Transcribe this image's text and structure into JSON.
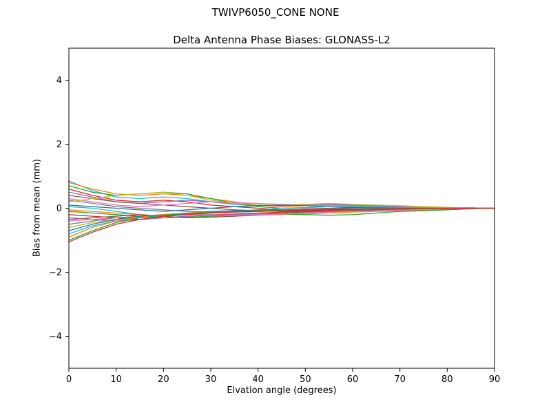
{
  "chart_data": {
    "type": "line",
    "suptitle": "TWIVP6050_CONE  NONE",
    "title": "Delta Antenna Phase Biases: GLONASS-L2",
    "xlabel": "Elvation angle (degrees)",
    "ylabel": "Bias from mean (mm)",
    "xlim": [
      0,
      90
    ],
    "ylim": [
      -5,
      5
    ],
    "xticks": [
      0,
      10,
      20,
      30,
      40,
      50,
      60,
      70,
      80,
      90
    ],
    "yticks": [
      -4,
      -2,
      0,
      2,
      4
    ],
    "grid": false,
    "legend": "none",
    "x": [
      0,
      5,
      10,
      15,
      20,
      25,
      30,
      35,
      40,
      45,
      50,
      55,
      60,
      65,
      70,
      75,
      80,
      85,
      90
    ],
    "series": [
      {
        "color": "#17becf",
        "values": [
          0.85,
          0.55,
          0.35,
          0.3,
          0.35,
          0.3,
          0.2,
          0.12,
          0.08,
          0.1,
          0.12,
          0.1,
          0.08,
          0.06,
          0.05,
          0.03,
          0.02,
          0.01,
          0
        ]
      },
      {
        "color": "#ff7f0e",
        "values": [
          0.8,
          0.6,
          0.45,
          0.4,
          0.45,
          0.4,
          0.3,
          0.2,
          0.1,
          0.05,
          0.08,
          0.1,
          0.08,
          0.05,
          0.04,
          0.03,
          0.02,
          0.01,
          0
        ]
      },
      {
        "color": "#2ca02c",
        "values": [
          0.7,
          0.5,
          0.4,
          0.45,
          0.5,
          0.45,
          0.3,
          0.15,
          0.05,
          0,
          0.02,
          0.05,
          0.06,
          0.05,
          0.04,
          0.02,
          0.01,
          0.01,
          0
        ]
      },
      {
        "color": "#d62728",
        "values": [
          0.6,
          0.4,
          0.25,
          0.2,
          0.25,
          0.2,
          0.1,
          0.05,
          0,
          -0.05,
          -0.02,
          0,
          0.02,
          0.03,
          0.02,
          0.01,
          0.01,
          0,
          0
        ]
      },
      {
        "color": "#9467bd",
        "values": [
          0.5,
          0.35,
          0.2,
          0.15,
          0.2,
          0.25,
          0.2,
          0.15,
          0.1,
          0.08,
          0.1,
          0.12,
          0.1,
          0.08,
          0.06,
          0.04,
          0.02,
          0.01,
          0
        ]
      },
      {
        "color": "#8c564b",
        "values": [
          0.4,
          0.3,
          0.2,
          0.15,
          0.1,
          0.05,
          0,
          -0.05,
          -0.08,
          -0.1,
          -0.08,
          -0.05,
          -0.03,
          -0.02,
          -0.01,
          0,
          0,
          0,
          0
        ]
      },
      {
        "color": "#e377c2",
        "values": [
          0.3,
          0.2,
          0.1,
          0.05,
          0.1,
          0.15,
          0.2,
          0.18,
          0.15,
          0.12,
          0.1,
          0.08,
          0.06,
          0.05,
          0.04,
          0.03,
          0.02,
          0.01,
          0
        ]
      },
      {
        "color": "#7f7f7f",
        "values": [
          0.25,
          0.15,
          0.05,
          0,
          -0.05,
          -0.1,
          -0.12,
          -0.1,
          -0.08,
          -0.05,
          -0.03,
          -0.02,
          -0.01,
          0,
          0,
          0,
          0,
          0,
          0
        ]
      },
      {
        "color": "#bcbd22",
        "values": [
          0.2,
          0.3,
          0.4,
          0.45,
          0.5,
          0.4,
          0.25,
          0.15,
          0.1,
          0.1,
          0.12,
          0.15,
          0.12,
          0.1,
          0.08,
          0.05,
          0.03,
          0.01,
          0
        ]
      },
      {
        "color": "#1f77b4",
        "values": [
          0.1,
          0.05,
          0,
          -0.05,
          -0.1,
          -0.05,
          0,
          0.05,
          0.08,
          0.1,
          0.08,
          0.05,
          0.03,
          0.02,
          0.01,
          0,
          0,
          0,
          0
        ]
      },
      {
        "color": "#17becf",
        "values": [
          0.05,
          0,
          -0.1,
          -0.2,
          -0.25,
          -0.2,
          -0.15,
          -0.1,
          -0.05,
          0,
          0.02,
          0.05,
          0.05,
          0.04,
          0.03,
          0.02,
          0.01,
          0,
          0
        ]
      },
      {
        "color": "#ff7f0e",
        "values": [
          -0.05,
          -0.1,
          -0.15,
          -0.2,
          -0.25,
          -0.3,
          -0.28,
          -0.25,
          -0.22,
          -0.2,
          -0.18,
          -0.15,
          -0.12,
          -0.1,
          -0.08,
          -0.05,
          -0.03,
          -0.01,
          0
        ]
      },
      {
        "color": "#2ca02c",
        "values": [
          -0.1,
          -0.15,
          -0.2,
          -0.25,
          -0.3,
          -0.28,
          -0.25,
          -0.22,
          -0.2,
          -0.18,
          -0.2,
          -0.22,
          -0.2,
          -0.15,
          -0.1,
          -0.08,
          -0.05,
          -0.02,
          0
        ]
      },
      {
        "color": "#d62728",
        "values": [
          -0.2,
          -0.25,
          -0.3,
          -0.35,
          -0.3,
          -0.25,
          -0.2,
          -0.18,
          -0.15,
          -0.12,
          -0.1,
          -0.08,
          -0.06,
          -0.05,
          -0.04,
          -0.03,
          -0.02,
          -0.01,
          0
        ]
      },
      {
        "color": "#9467bd",
        "values": [
          -0.3,
          -0.35,
          -0.4,
          -0.35,
          -0.3,
          -0.25,
          -0.22,
          -0.2,
          -0.18,
          -0.15,
          -0.12,
          -0.1,
          -0.08,
          -0.06,
          -0.05,
          -0.03,
          -0.02,
          -0.01,
          0
        ]
      },
      {
        "color": "#8c564b",
        "values": [
          -0.35,
          -0.3,
          -0.25,
          -0.2,
          -0.25,
          -0.3,
          -0.28,
          -0.25,
          -0.2,
          -0.15,
          -0.12,
          -0.1,
          -0.08,
          -0.06,
          -0.04,
          -0.03,
          -0.02,
          -0.01,
          0
        ]
      },
      {
        "color": "#e377c2",
        "values": [
          -0.4,
          -0.35,
          -0.3,
          -0.25,
          -0.2,
          -0.18,
          -0.2,
          -0.22,
          -0.2,
          -0.18,
          -0.15,
          -0.12,
          -0.1,
          -0.08,
          -0.06,
          -0.04,
          -0.02,
          -0.01,
          0
        ]
      },
      {
        "color": "#7f7f7f",
        "values": [
          -0.5,
          -0.4,
          -0.3,
          -0.25,
          -0.2,
          -0.15,
          -0.12,
          -0.1,
          -0.08,
          -0.06,
          -0.05,
          -0.04,
          -0.03,
          -0.02,
          -0.02,
          -0.01,
          -0.01,
          0,
          0
        ]
      },
      {
        "color": "#bcbd22",
        "values": [
          -0.6,
          -0.45,
          -0.35,
          -0.3,
          -0.25,
          -0.2,
          -0.15,
          -0.12,
          -0.1,
          -0.08,
          -0.06,
          -0.05,
          -0.04,
          -0.03,
          -0.02,
          -0.01,
          -0.01,
          0,
          0
        ]
      },
      {
        "color": "#1f77b4",
        "values": [
          -0.7,
          -0.5,
          -0.35,
          -0.25,
          -0.2,
          -0.15,
          -0.1,
          -0.08,
          -0.06,
          -0.05,
          -0.04,
          -0.03,
          -0.02,
          -0.02,
          -0.01,
          -0.01,
          0,
          0,
          0
        ]
      },
      {
        "color": "#17becf",
        "values": [
          -0.8,
          -0.55,
          -0.4,
          -0.3,
          -0.22,
          -0.18,
          -0.15,
          -0.12,
          -0.1,
          -0.08,
          -0.06,
          -0.05,
          -0.04,
          -0.03,
          -0.02,
          -0.01,
          -0.01,
          0,
          0
        ]
      },
      {
        "color": "#ff7f0e",
        "values": [
          -0.9,
          -0.6,
          -0.4,
          -0.28,
          -0.2,
          -0.15,
          -0.12,
          -0.1,
          -0.08,
          -0.06,
          -0.05,
          -0.04,
          -0.03,
          -0.02,
          -0.01,
          -0.01,
          0,
          0,
          0
        ]
      },
      {
        "color": "#2ca02c",
        "values": [
          -1.0,
          -0.7,
          -0.45,
          -0.3,
          -0.22,
          -0.17,
          -0.13,
          -0.1,
          -0.08,
          -0.06,
          -0.05,
          -0.04,
          -0.03,
          -0.02,
          -0.02,
          -0.01,
          -0.01,
          0,
          0
        ]
      },
      {
        "color": "#d62728",
        "values": [
          -1.05,
          -0.75,
          -0.5,
          -0.35,
          -0.25,
          -0.2,
          -0.15,
          -0.12,
          -0.1,
          -0.08,
          -0.06,
          -0.05,
          -0.04,
          -0.03,
          -0.02,
          -0.01,
          -0.01,
          0,
          0
        ]
      }
    ]
  }
}
